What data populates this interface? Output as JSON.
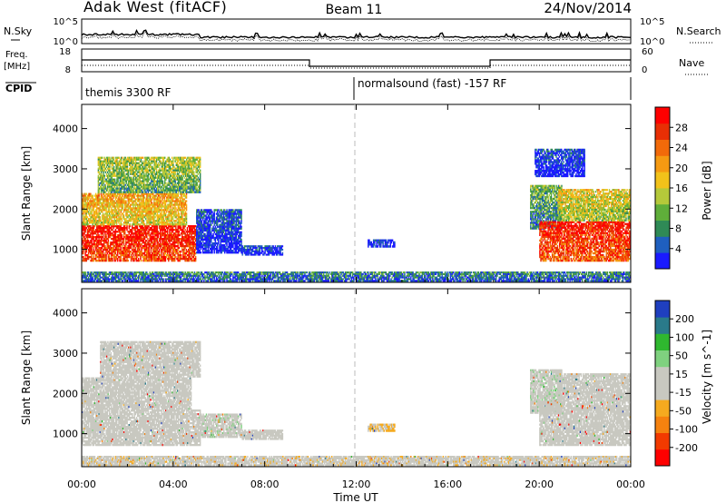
{
  "header": {
    "station": "Adak West (fitACF)",
    "beam": "Beam 11",
    "date": "24/Nov/2014"
  },
  "strips": {
    "nsky_label": "N.Sky",
    "nsearch_label": "N.Search",
    "freq_label": "Freq.",
    "freq_unit": "[MHz]",
    "nave_label": "Nave",
    "cpid_label": "CPID",
    "nsky_ticks": [
      "10^5",
      "10^0"
    ],
    "nsearch_ticks": [
      "10^5",
      "10^0"
    ],
    "freq_ticks": [
      "18",
      "8"
    ],
    "nave_ticks": [
      "60",
      "0"
    ],
    "cpid_left": "themis 3300 RF",
    "cpid_right": "normalsound (fast) -157 RF"
  },
  "colors": {
    "power": [
      "#1a1aff",
      "#1f5fbf",
      "#2f8a56",
      "#5fae3a",
      "#b5c93a",
      "#f2c21a",
      "#f59a12",
      "#f26a0a",
      "#e82f05",
      "#ff0000"
    ],
    "velocity": [
      "#ff0000",
      "#f23a00",
      "#f5820f",
      "#f5aa1f",
      "#c8c8c0",
      "#c8c8c0",
      "#7fd17f",
      "#2fb82f",
      "#2a7a8a",
      "#1f3fbf"
    ]
  },
  "chart_data": [
    {
      "type": "heatmap",
      "panel": "power",
      "ylabel": "Slant Range [km]",
      "ylim": [
        180,
        4600
      ],
      "y_ticks": [
        "1000",
        "2000",
        "3000",
        "4000"
      ],
      "x_ticks": [
        "00:00",
        "04:00",
        "08:00",
        "12:00",
        "16:00",
        "20:00",
        "00:00"
      ],
      "colorbar_label": "Power [dB]",
      "colorbar_ticks": [
        "4",
        "8",
        "12",
        "16",
        "20",
        "24",
        "28"
      ],
      "colorbar_range": [
        0,
        32
      ],
      "regions": [
        {
          "t0": 0.0,
          "t1": 5.0,
          "r0": 700,
          "r1": 1600,
          "level": 0.95
        },
        {
          "t0": 0.0,
          "t1": 4.6,
          "r0": 1600,
          "r1": 2400,
          "level": 0.65
        },
        {
          "t0": 0.7,
          "t1": 5.2,
          "r0": 2400,
          "r1": 3300,
          "level": 0.45
        },
        {
          "t0": 5.0,
          "t1": 7.0,
          "r0": 900,
          "r1": 2000,
          "level": 0.15
        },
        {
          "t0": 7.0,
          "t1": 8.8,
          "r0": 850,
          "r1": 1100,
          "level": 0.12
        },
        {
          "t0": 12.5,
          "t1": 13.7,
          "r0": 1050,
          "r1": 1250,
          "level": 0.12
        },
        {
          "t0": 19.6,
          "t1": 21.0,
          "r0": 1500,
          "r1": 2600,
          "level": 0.35
        },
        {
          "t0": 20.0,
          "t1": 24.0,
          "r0": 700,
          "r1": 1700,
          "level": 0.92
        },
        {
          "t0": 20.8,
          "t1": 24.0,
          "r0": 1700,
          "r1": 2500,
          "level": 0.55
        },
        {
          "t0": 19.8,
          "t1": 22.0,
          "r0": 2800,
          "r1": 3500,
          "level": 0.12
        },
        {
          "t0": 0.0,
          "t1": 24.0,
          "r0": 200,
          "r1": 450,
          "level": 0.25
        }
      ]
    },
    {
      "type": "heatmap",
      "panel": "velocity",
      "ylabel": "Slant Range [km]",
      "ylim": [
        180,
        4600
      ],
      "y_ticks": [
        "1000",
        "2000",
        "3000",
        "4000"
      ],
      "x_ticks": [
        "00:00",
        "04:00",
        "08:00",
        "12:00",
        "16:00",
        "20:00",
        "00:00"
      ],
      "xlabel": "Time UT",
      "colorbar_label": "Velocity [m s^-1]",
      "colorbar_ticks": [
        "200",
        "100",
        "50",
        "15",
        "-15",
        "-50",
        "-100",
        "-200"
      ],
      "colorbar_range": [
        -250,
        250
      ],
      "regions": [
        {
          "t0": 0.0,
          "t1": 5.2,
          "r0": 700,
          "r1": 1600,
          "vel": 0
        },
        {
          "t0": 0.0,
          "t1": 4.8,
          "r0": 1600,
          "r1": 2400,
          "vel": 0
        },
        {
          "t0": 0.8,
          "t1": 5.2,
          "r0": 2400,
          "r1": 3300,
          "vel": -20
        },
        {
          "t0": 5.2,
          "t1": 7.0,
          "r0": 900,
          "r1": 1500,
          "vel": 40
        },
        {
          "t0": 7.0,
          "t1": 8.8,
          "r0": 850,
          "r1": 1100,
          "vel": 30
        },
        {
          "t0": 12.5,
          "t1": 13.7,
          "r0": 1050,
          "r1": 1250,
          "vel": -60
        },
        {
          "t0": 19.6,
          "t1": 21.0,
          "r0": 1500,
          "r1": 2600,
          "vel": 40
        },
        {
          "t0": 20.0,
          "t1": 24.0,
          "r0": 700,
          "r1": 1800,
          "vel": 0
        },
        {
          "t0": 20.8,
          "t1": 24.0,
          "r0": 1800,
          "r1": 2500,
          "vel": 0
        },
        {
          "t0": 0.0,
          "t1": 24.0,
          "r0": 200,
          "r1": 450,
          "vel": -40
        }
      ]
    }
  ]
}
